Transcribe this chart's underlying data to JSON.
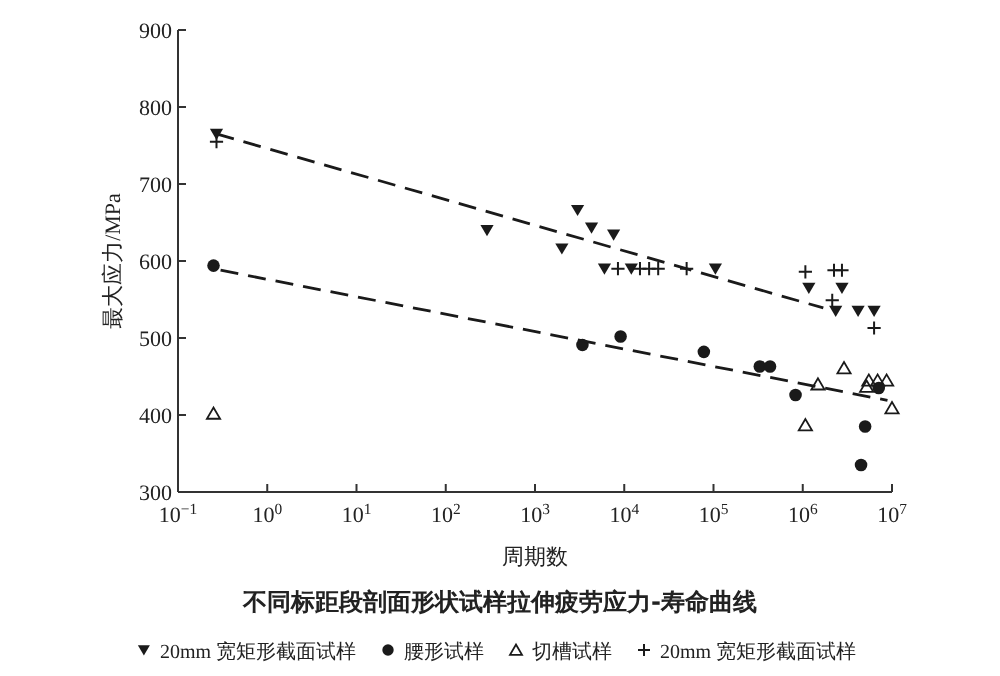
{
  "chart_data": {
    "type": "scatter",
    "title": "不同标距段剖面形状试样拉伸疲劳应力-寿命曲线",
    "xlabel": "周期数",
    "ylabel": "最大应力/MPa",
    "log": "x",
    "legend": "bottom",
    "xlim": [
      0.1,
      10000000
    ],
    "ylim": [
      300,
      900
    ],
    "xticks": [
      {
        "value": 0.1,
        "label": "10$^{−1}$"
      },
      {
        "value": 1,
        "label": "10$^{0}$"
      },
      {
        "value": 10,
        "label": "10$^{1}$"
      },
      {
        "value": 100,
        "label": "10$^{2}$"
      },
      {
        "value": 1000,
        "label": "10$^{3}$"
      },
      {
        "value": 10000,
        "label": "10$^{4}$"
      },
      {
        "value": 100000,
        "label": "10$^{5}$"
      },
      {
        "value": 1000000,
        "label": "10$^{6}$"
      },
      {
        "value": 10000000,
        "label": "10$^{7}$"
      }
    ],
    "yticks": [
      300,
      400,
      500,
      600,
      700,
      800,
      900
    ],
    "series": [
      {
        "name": "20mm 宽矩形截面试样",
        "color": "#1a1a1a",
        "marker": "triangle-down",
        "x": [
          0.27,
          290,
          3000,
          2000,
          4300,
          7600,
          6000,
          12000,
          105000,
          1170000,
          2750000,
          2340000,
          4170000,
          6300000
        ],
        "values": [
          765,
          640,
          666,
          616,
          643,
          634,
          590,
          590,
          590,
          565,
          565,
          535,
          535,
          535
        ]
      },
      {
        "name": "腰形试样",
        "color": "#1a1a1a",
        "marker": "circle",
        "x": [
          0.25,
          3400,
          9100,
          78000,
          330000,
          430000,
          830000,
          7100000,
          5000000,
          4500000
        ],
        "values": [
          594,
          491,
          502,
          482,
          463,
          463,
          426,
          435,
          385,
          335
        ]
      },
      {
        "name": "切槽试样",
        "color": "#1a1a1a",
        "marker": "triangle",
        "x": [
          0.25,
          2900000,
          1480000,
          1070000,
          5500000,
          6900000,
          8700000,
          5200000,
          10000000
        ],
        "values": [
          402,
          461,
          440,
          387,
          445,
          445,
          445,
          437,
          409
        ]
      },
      {
        "name": "20mm 宽矩形截面试样",
        "color": "#1a1a1a",
        "marker": "cross",
        "x": [
          0.27,
          8500,
          15000,
          19000,
          24000,
          50000,
          1070000,
          2240000,
          2750000,
          2140000,
          6300000
        ],
        "values": [
          755,
          590,
          590,
          590,
          590,
          590,
          586,
          588,
          588,
          549,
          513
        ]
      },
      {
        "type": "line",
        "color": "#1a1a1a",
        "line_style": "dashed",
        "marker": "none",
        "x": [
          0.27,
          1700000
        ],
        "values": [
          765,
          539
        ]
      },
      {
        "type": "line",
        "color": "#1a1a1a",
        "line_style": "dashed",
        "marker": "none",
        "x": [
          0.3,
          8900000
        ],
        "values": [
          588,
          419
        ]
      }
    ]
  }
}
